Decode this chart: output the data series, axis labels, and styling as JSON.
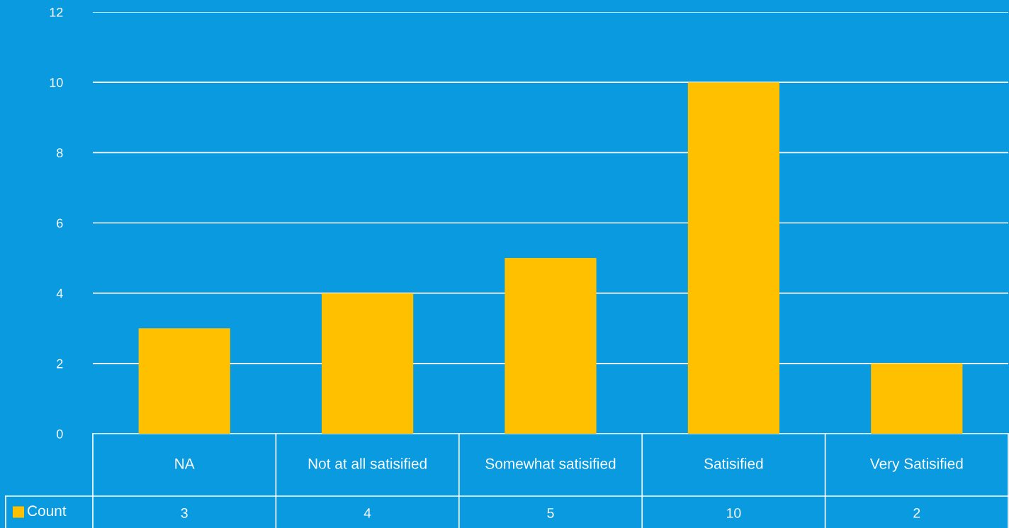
{
  "chart_data": {
    "type": "bar",
    "categories": [
      "NA",
      "Not at all satisified",
      "Somewhat satisified",
      "Satisified",
      "Very Satisified"
    ],
    "series": [
      {
        "name": "Count",
        "color": "#ffc000",
        "values": [
          3,
          4,
          5,
          10,
          2
        ]
      }
    ],
    "ylim": [
      0,
      12
    ],
    "yticks": [
      0,
      2,
      4,
      6,
      8,
      10,
      12
    ],
    "grid": "y",
    "legend": "bottom",
    "data_labels": true
  }
}
